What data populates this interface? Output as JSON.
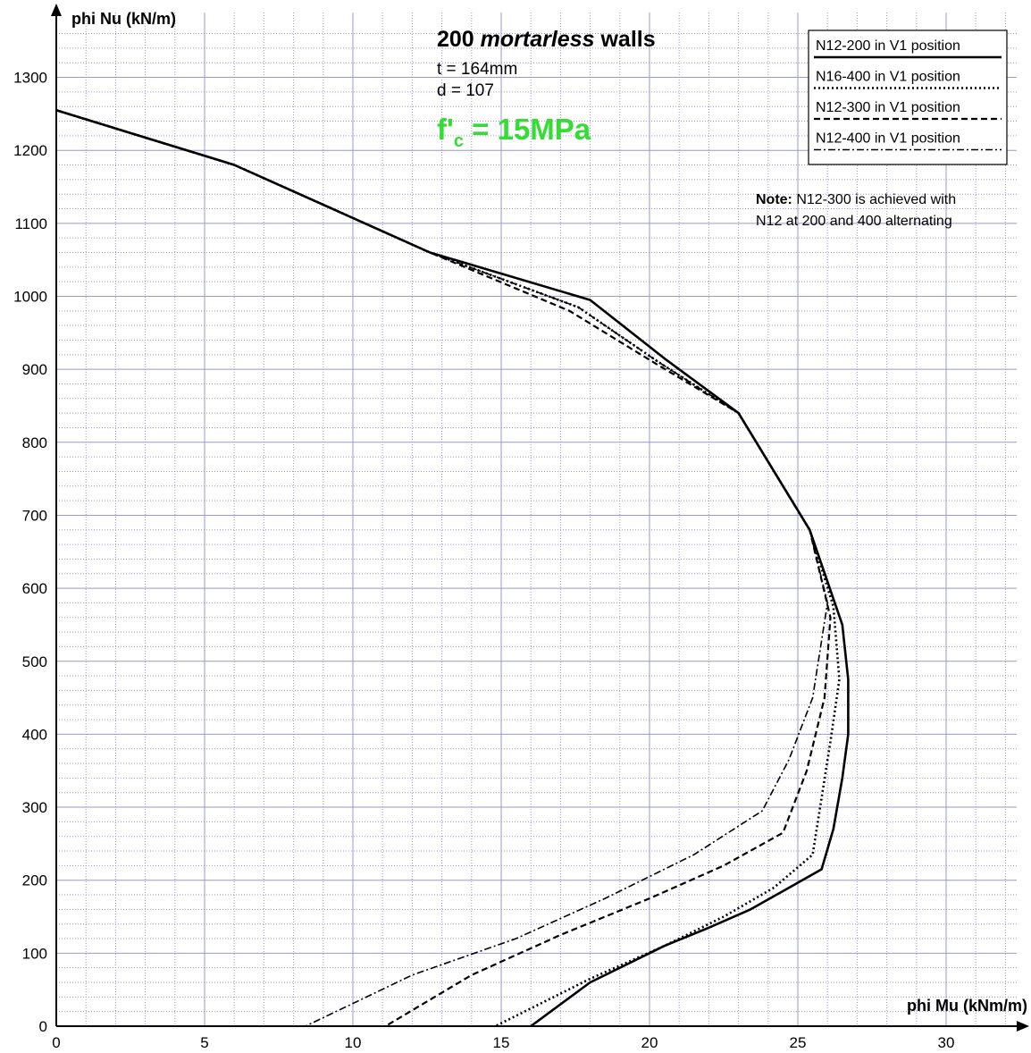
{
  "chart_data": {
    "type": "line",
    "title_prefix": "200 ",
    "title_emph": "mortarless",
    "title_suffix": " walls",
    "subtitle_lines": [
      "t = 164mm",
      "d = 107"
    ],
    "fc_f": "f",
    "fc_prime": "'",
    "fc_sub": "c",
    "fc_value": " = 15MPa",
    "note_bold": "Note:",
    "note_line1": " N12-300 is achieved with",
    "note_line2": "N12 at 200 and 400 alternating",
    "xlabel": "phi Mu (kNm/m)",
    "ylabel": "phi Nu (kN/m)",
    "xlim": [
      0,
      33
    ],
    "ylim": [
      0,
      1370
    ],
    "x_ticks": [
      0,
      5,
      10,
      15,
      20,
      25,
      30
    ],
    "y_ticks": [
      0,
      100,
      200,
      300,
      400,
      500,
      600,
      700,
      800,
      900,
      1000,
      1100,
      1200,
      1300
    ],
    "grid": true,
    "grid_color": "#9999cc",
    "legend_position": "top-right",
    "series": [
      {
        "name": "N12-200 in V1 position",
        "style": "solid",
        "x": [
          0,
          6,
          12.6,
          18,
          20.5,
          23,
          25.4,
          26.5,
          26.7,
          26.7,
          26.5,
          26.2,
          25.8,
          24.5,
          23.4,
          22,
          20.5,
          18,
          16
        ],
        "y": [
          1255,
          1180,
          1060,
          995,
          915,
          840,
          680,
          550,
          475,
          400,
          340,
          270,
          215,
          185,
          160,
          135,
          110,
          60,
          0
        ]
      },
      {
        "name": "N16-400 in V1 position",
        "style": "dotted",
        "x": [
          0,
          6,
          12.6,
          17.6,
          20.3,
          23,
          25.4,
          26.2,
          26.4,
          26.1,
          25.5,
          24.2,
          22.5,
          20.5,
          18,
          14.8
        ],
        "y": [
          1255,
          1180,
          1060,
          985,
          910,
          840,
          680,
          575,
          475,
          390,
          235,
          190,
          150,
          110,
          65,
          0
        ]
      },
      {
        "name": "N12-300 in V1 position",
        "style": "dashed",
        "x": [
          0,
          6,
          12.6,
          17.3,
          20.2,
          23,
          25.4,
          26.1,
          25.9,
          25.3,
          24.5,
          22.5,
          20,
          17,
          14,
          11.1
        ],
        "y": [
          1255,
          1180,
          1060,
          980,
          908,
          840,
          680,
          560,
          450,
          350,
          265,
          220,
          175,
          125,
          70,
          0
        ]
      },
      {
        "name": "N12-400 in V1 position",
        "style": "dashdot",
        "x": [
          0,
          6,
          12.6,
          17.6,
          20.3,
          23,
          25.4,
          26.0,
          25.5,
          24.7,
          23.8,
          21.5,
          18.5,
          15.5,
          12,
          8.4
        ],
        "y": [
          1255,
          1180,
          1060,
          985,
          910,
          840,
          680,
          580,
          450,
          365,
          295,
          235,
          175,
          120,
          70,
          0
        ]
      }
    ]
  }
}
